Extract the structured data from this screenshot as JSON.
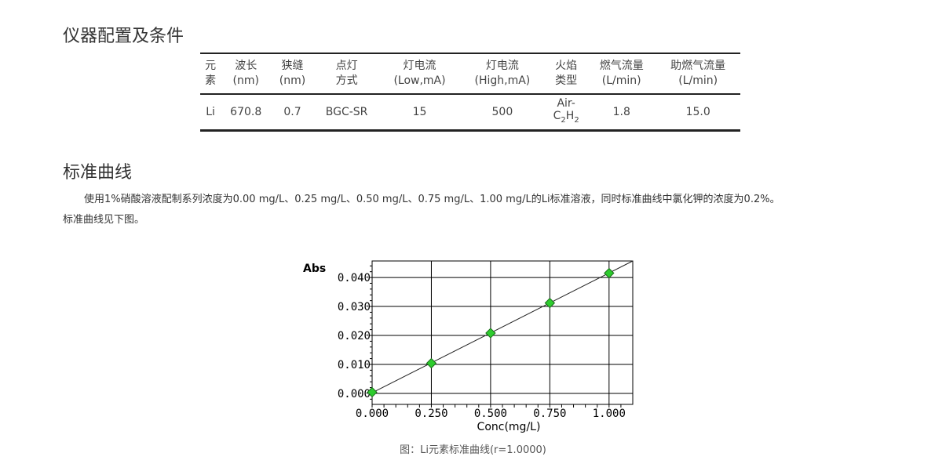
{
  "section1": {
    "title": "仪器配置及条件"
  },
  "table": {
    "headers": [
      [
        "元",
        "素"
      ],
      [
        "波长",
        "(nm)"
      ],
      [
        "狭缝",
        "(nm)"
      ],
      [
        "点灯",
        "方式"
      ],
      [
        "灯电流",
        "(Low,mA)"
      ],
      [
        "灯电流",
        "(High,mA)"
      ],
      [
        "火焰",
        "类型"
      ],
      [
        "燃气流量",
        "(L/min)"
      ],
      [
        "助燃气流量",
        "(L/min)"
      ]
    ],
    "row": [
      "Li",
      "670.8",
      "0.7",
      "BGC-SR",
      "15",
      "500",
      "Air-",
      "1.8",
      "15.0"
    ],
    "flame_formula": {
      "c": "C",
      "n1": "2",
      "h": "H",
      "n2": "2"
    }
  },
  "section2": {
    "title": "标准曲线",
    "paragraph": "使用1%硝酸溶液配制系列浓度为0.00 mg/L、0.25 mg/L、0.50 mg/L、0.75 mg/L、1.00 mg/L的Li标准溶液，同时标准曲线中氯化钾的浓度为0.2%。",
    "paragraph2": "标准曲线见下图。"
  },
  "chart_data": {
    "type": "scatter",
    "xlabel": "Conc(mg/L)",
    "ylabel": "Abs",
    "xlim": [
      0,
      1.1
    ],
    "ylim": [
      -0.0038,
      0.0457
    ],
    "xticks": [
      "0.000",
      "0.250",
      "0.500",
      "0.750",
      "1.000"
    ],
    "yticks": [
      "0.000",
      "0.010",
      "0.020",
      "0.030",
      "0.040"
    ],
    "x": [
      0,
      0.25,
      0.5,
      0.75,
      1.0
    ],
    "y": [
      0.0004,
      0.0104,
      0.0208,
      0.0312,
      0.0415
    ],
    "fit": {
      "x": [
        0,
        1.1
      ],
      "y": [
        0.0002,
        0.0457
      ]
    },
    "grid": true,
    "marker_color": "#2ecc2e"
  },
  "caption": "图：Li元素标准曲线(r=1.0000)"
}
